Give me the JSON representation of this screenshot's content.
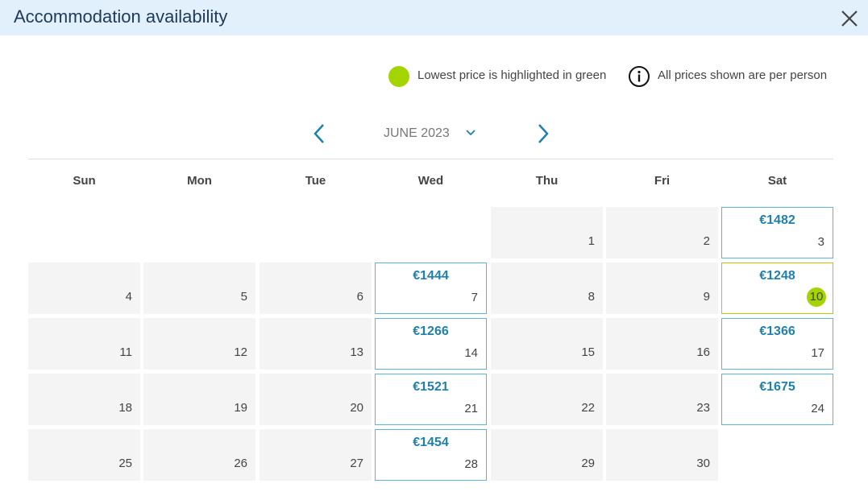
{
  "header": {
    "title": "Accommodation availability"
  },
  "legend": {
    "lowest": "Lowest price is highlighted in green",
    "info": "All prices shown are per person"
  },
  "calendar": {
    "month": "JUNE 2023",
    "weekdays": [
      "Sun",
      "Mon",
      "Tue",
      "Wed",
      "Thu",
      "Fri",
      "Sat"
    ],
    "weeks": [
      [
        null,
        null,
        null,
        null,
        {
          "day": 1
        },
        {
          "day": 2
        },
        {
          "day": 3,
          "price": "€1482"
        }
      ],
      [
        {
          "day": 4
        },
        {
          "day": 5
        },
        {
          "day": 6
        },
        {
          "day": 7,
          "price": "€1444"
        },
        {
          "day": 8
        },
        {
          "day": 9
        },
        {
          "day": 10,
          "price": "€1248",
          "lowest": true
        }
      ],
      [
        {
          "day": 11
        },
        {
          "day": 12
        },
        {
          "day": 13
        },
        {
          "day": 14,
          "price": "€1266"
        },
        {
          "day": 15
        },
        {
          "day": 16
        },
        {
          "day": 17,
          "price": "€1366"
        }
      ],
      [
        {
          "day": 18
        },
        {
          "day": 19
        },
        {
          "day": 20
        },
        {
          "day": 21,
          "price": "€1521"
        },
        {
          "day": 22
        },
        {
          "day": 23
        },
        {
          "day": 24,
          "price": "€1675"
        }
      ],
      [
        {
          "day": 25
        },
        {
          "day": 26
        },
        {
          "day": 27
        },
        {
          "day": 28,
          "price": "€1454"
        },
        {
          "day": 29
        },
        {
          "day": 30
        },
        null
      ]
    ]
  }
}
